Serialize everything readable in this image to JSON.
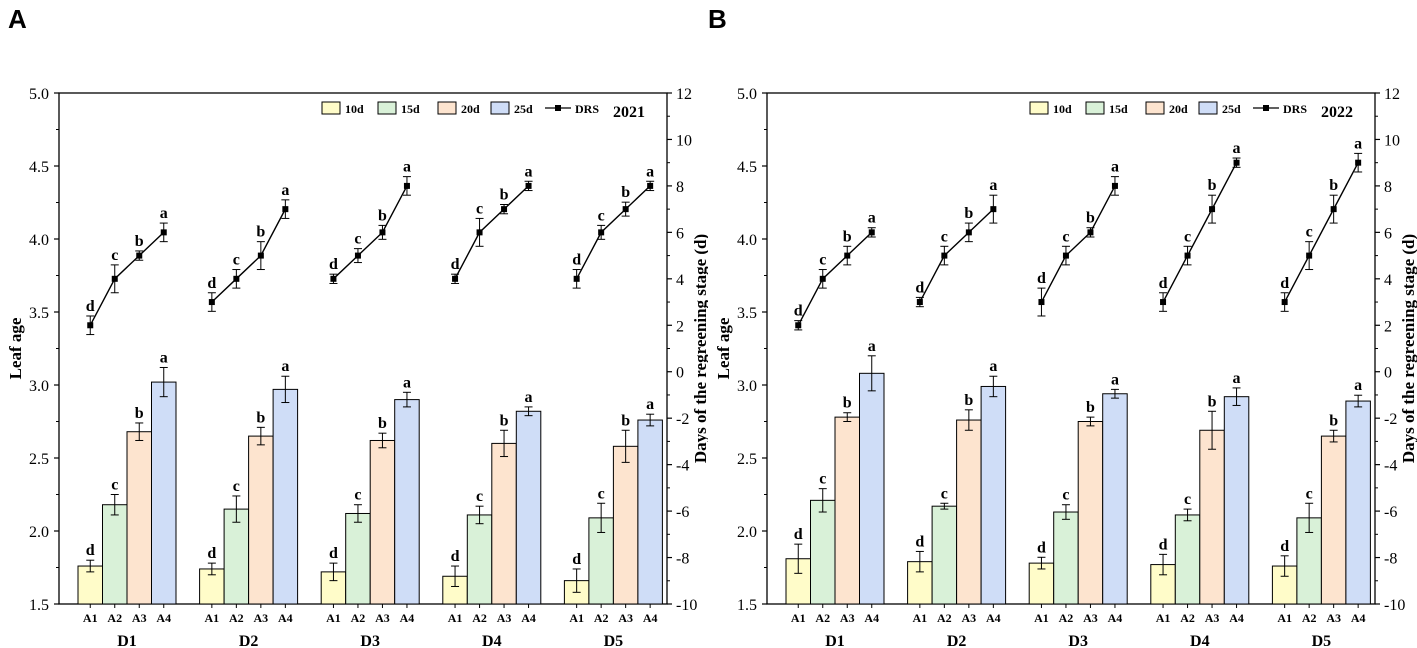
{
  "panels": [
    {
      "letter": "A",
      "year": "2021",
      "ylabel_left": "Leaf age",
      "ylabel_right": "Days of the regreening stage (d)",
      "legend": [
        "10d",
        "15d",
        "20d",
        "25d",
        "DRS"
      ],
      "colors": {
        "bars": [
          "#fffcc9",
          "#d9f1d8",
          "#fde4cf",
          "#cfddf7"
        ],
        "line": "#000000"
      },
      "left_axis": {
        "min": 1.5,
        "max": 5.0,
        "ticks": [
          "1.5",
          "2.0",
          "2.5",
          "3.0",
          "3.5",
          "4.0",
          "4.5",
          "5.0"
        ]
      },
      "right_axis": {
        "min": -10,
        "max": 12,
        "ticks": [
          "-10",
          "-8",
          "-6",
          "-4",
          "-2",
          "0",
          "2",
          "4",
          "6",
          "8",
          "10",
          "12"
        ]
      },
      "groups": [
        "D1",
        "D2",
        "D3",
        "D4",
        "D5"
      ],
      "subcategories": [
        "A1",
        "A2",
        "A3",
        "A4"
      ],
      "chart_data": {
        "type": "bar",
        "title": "2021",
        "xlabel": "",
        "ylabel": "Leaf age",
        "ylim": [
          1.5,
          5.0
        ],
        "bars": [
          {
            "group": "D1",
            "values": [
              1.76,
              2.18,
              2.68,
              3.02
            ],
            "errors": [
              0.04,
              0.07,
              0.06,
              0.1
            ],
            "letters": [
              "d",
              "c",
              "b",
              "a"
            ]
          },
          {
            "group": "D2",
            "values": [
              1.74,
              2.15,
              2.65,
              2.97
            ],
            "errors": [
              0.04,
              0.09,
              0.06,
              0.09
            ],
            "letters": [
              "d",
              "c",
              "b",
              "a"
            ]
          },
          {
            "group": "D3",
            "values": [
              1.72,
              2.12,
              2.62,
              2.9
            ],
            "errors": [
              0.06,
              0.06,
              0.05,
              0.05
            ],
            "letters": [
              "d",
              "c",
              "b",
              "a"
            ]
          },
          {
            "group": "D4",
            "values": [
              1.69,
              2.11,
              2.6,
              2.82
            ],
            "errors": [
              0.07,
              0.06,
              0.09,
              0.03
            ],
            "letters": [
              "d",
              "c",
              "b",
              "a"
            ]
          },
          {
            "group": "D5",
            "values": [
              1.66,
              2.09,
              2.58,
              2.76
            ],
            "errors": [
              0.08,
              0.1,
              0.11,
              0.04
            ],
            "letters": [
              "d",
              "c",
              "b",
              "a"
            ]
          }
        ],
        "drs_line": {
          "ylabel": "Days of the regreening stage (d)",
          "ylim": [
            -10,
            12
          ],
          "series": [
            {
              "group": "D1",
              "values": [
                2.0,
                4.0,
                5.0,
                6.0
              ],
              "errors": [
                0.4,
                0.6,
                0.2,
                0.4
              ],
              "letters": [
                "d",
                "c",
                "b",
                "a"
              ]
            },
            {
              "group": "D2",
              "values": [
                3.0,
                4.0,
                5.0,
                7.0
              ],
              "errors": [
                0.4,
                0.4,
                0.6,
                0.4
              ],
              "letters": [
                "d",
                "c",
                "b",
                "a"
              ]
            },
            {
              "group": "D3",
              "values": [
                4.0,
                5.0,
                6.0,
                8.0
              ],
              "errors": [
                0.2,
                0.3,
                0.3,
                0.4
              ],
              "letters": [
                "d",
                "c",
                "b",
                "a"
              ]
            },
            {
              "group": "D4",
              "values": [
                4.0,
                6.0,
                7.0,
                8.0
              ],
              "errors": [
                0.2,
                0.6,
                0.2,
                0.2
              ],
              "letters": [
                "d",
                "c",
                "b",
                "a"
              ]
            },
            {
              "group": "D5",
              "values": [
                4.0,
                6.0,
                7.0,
                8.0
              ],
              "errors": [
                0.4,
                0.3,
                0.3,
                0.2
              ],
              "letters": [
                "d",
                "c",
                "b",
                "a"
              ]
            }
          ]
        }
      }
    },
    {
      "letter": "B",
      "year": "2022",
      "ylabel_left": "Leaf age",
      "ylabel_right": "Days of the regreening stage (d)",
      "legend": [
        "10d",
        "15d",
        "20d",
        "25d",
        "DRS"
      ],
      "colors": {
        "bars": [
          "#fffcc9",
          "#d9f1d8",
          "#fde4cf",
          "#cfddf7"
        ],
        "line": "#000000"
      },
      "left_axis": {
        "min": 1.5,
        "max": 5.0,
        "ticks": [
          "1.5",
          "2.0",
          "2.5",
          "3.0",
          "3.5",
          "4.0",
          "4.5",
          "5.0"
        ]
      },
      "right_axis": {
        "min": -10,
        "max": 12,
        "ticks": [
          "-10",
          "-8",
          "-6",
          "-4",
          "-2",
          "0",
          "2",
          "4",
          "6",
          "8",
          "10",
          "12"
        ]
      },
      "groups": [
        "D1",
        "D2",
        "D3",
        "D4",
        "D5"
      ],
      "subcategories": [
        "A1",
        "A2",
        "A3",
        "A4"
      ],
      "chart_data": {
        "type": "bar",
        "title": "2022",
        "xlabel": "",
        "ylabel": "Leaf age",
        "ylim": [
          1.5,
          5.0
        ],
        "bars": [
          {
            "group": "D1",
            "values": [
              1.81,
              2.21,
              2.78,
              3.08
            ],
            "errors": [
              0.1,
              0.08,
              0.03,
              0.12
            ],
            "letters": [
              "d",
              "c",
              "b",
              "a"
            ]
          },
          {
            "group": "D2",
            "values": [
              1.79,
              2.17,
              2.76,
              2.99
            ],
            "errors": [
              0.07,
              0.02,
              0.07,
              0.07
            ],
            "letters": [
              "d",
              "c",
              "b",
              "a"
            ]
          },
          {
            "group": "D3",
            "values": [
              1.78,
              2.13,
              2.75,
              2.94
            ],
            "errors": [
              0.04,
              0.05,
              0.03,
              0.03
            ],
            "letters": [
              "d",
              "c",
              "b",
              "a"
            ]
          },
          {
            "group": "D4",
            "values": [
              1.77,
              2.11,
              2.69,
              2.92
            ],
            "errors": [
              0.07,
              0.04,
              0.13,
              0.06
            ],
            "letters": [
              "d",
              "c",
              "b",
              "a"
            ]
          },
          {
            "group": "D5",
            "values": [
              1.76,
              2.09,
              2.65,
              2.89
            ],
            "errors": [
              0.07,
              0.1,
              0.04,
              0.04
            ],
            "letters": [
              "d",
              "c",
              "b",
              "a"
            ]
          }
        ],
        "drs_line": {
          "ylabel": "Days of the regreening stage (d)",
          "ylim": [
            -10,
            12
          ],
          "series": [
            {
              "group": "D1",
              "values": [
                2.0,
                4.0,
                5.0,
                6.0
              ],
              "errors": [
                0.2,
                0.4,
                0.4,
                0.2
              ],
              "letters": [
                "d",
                "c",
                "b",
                "a"
              ]
            },
            {
              "group": "D2",
              "values": [
                3.0,
                5.0,
                6.0,
                7.0
              ],
              "errors": [
                0.2,
                0.4,
                0.4,
                0.6
              ],
              "letters": [
                "d",
                "c",
                "b",
                "a"
              ]
            },
            {
              "group": "D3",
              "values": [
                3.0,
                5.0,
                6.0,
                8.0
              ],
              "errors": [
                0.6,
                0.4,
                0.2,
                0.4
              ],
              "letters": [
                "d",
                "c",
                "b",
                "a"
              ]
            },
            {
              "group": "D4",
              "values": [
                3.0,
                5.0,
                7.0,
                9.0
              ],
              "errors": [
                0.4,
                0.4,
                0.6,
                0.2
              ],
              "letters": [
                "d",
                "c",
                "b",
                "a"
              ]
            },
            {
              "group": "D5",
              "values": [
                3.0,
                5.0,
                7.0,
                9.0
              ],
              "errors": [
                0.4,
                0.6,
                0.6,
                0.4
              ],
              "letters": [
                "d",
                "c",
                "b",
                "a"
              ]
            }
          ]
        }
      }
    }
  ]
}
